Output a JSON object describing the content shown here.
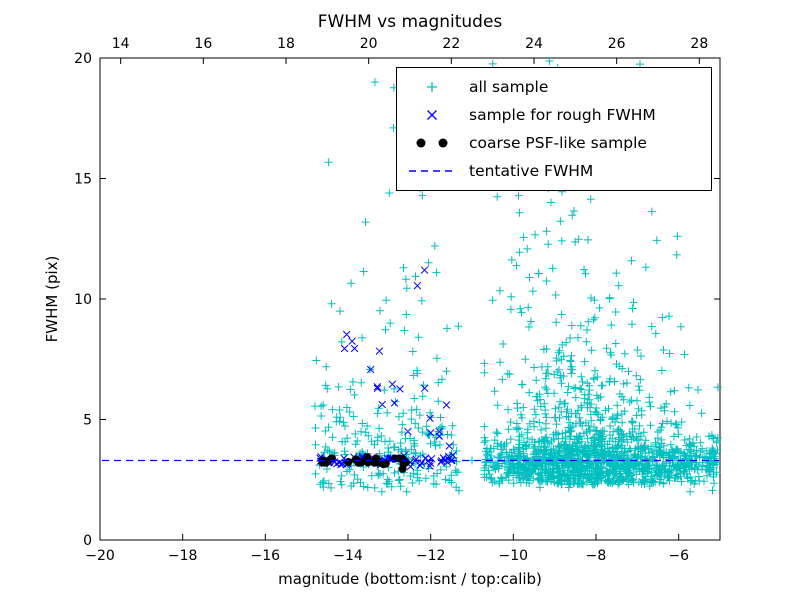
{
  "chart_data": {
    "type": "scatter",
    "title": "FWHM vs magnitudes",
    "xlabel": "magnitude (bottom:isnt / top:calib)",
    "ylabel": "FWHM (pix)",
    "grid": false,
    "seed": 42,
    "axes": {
      "x_bottom": {
        "range": [
          -20,
          -5
        ],
        "ticks": [
          -20,
          -18,
          -16,
          -14,
          -12,
          -10,
          -8,
          -6
        ]
      },
      "x_top": {
        "range": [
          13.5,
          28.5
        ],
        "ticks": [
          14,
          16,
          18,
          20,
          22,
          24,
          26,
          28
        ]
      },
      "y": {
        "range": [
          0,
          20
        ],
        "ticks": [
          0,
          5,
          10,
          15,
          20
        ]
      }
    },
    "legend": {
      "position": "upper right",
      "items": [
        {
          "label": "all sample",
          "marker": "plus",
          "color": "#00bfbf"
        },
        {
          "label": "sample for rough FWHM",
          "marker": "x",
          "color": "#0000ff"
        },
        {
          "label": "coarse PSF-like sample",
          "marker": "circle",
          "color": "#000000"
        },
        {
          "label": "tentative FWHM",
          "marker": "dashed-line",
          "color": "#0000ff"
        }
      ]
    },
    "series": [
      {
        "name": "all sample",
        "marker": "plus",
        "color": "#00bfbf",
        "size": 4,
        "clusters": [
          {
            "count": 140,
            "x": {
              "dist": "uniform",
              "min": -14.8,
              "max": -11.3
            },
            "y": {
              "dist": "exp",
              "base": 2.1,
              "scale": 4.0,
              "max": 19.6
            }
          },
          {
            "count": 115,
            "x": {
              "dist": "uniform",
              "min": -14.8,
              "max": -11.3
            },
            "y": {
              "dist": "normal",
              "mean": 3.6,
              "sd": 1.0,
              "min": 2.0,
              "max": 7.0
            }
          },
          {
            "count": 950,
            "x": {
              "dist": "normal",
              "mean": -8.2,
              "sd": 1.15,
              "min": -10.7,
              "max": -5.05
            },
            "y": {
              "dist": "exp",
              "base": 2.3,
              "scale": 2.0,
              "max": 20.0
            }
          },
          {
            "count": 560,
            "x": {
              "dist": "uniform",
              "min": -10.7,
              "max": -5.05
            },
            "y": {
              "dist": "normal",
              "mean": 3.3,
              "sd": 0.4,
              "min": 2.1,
              "max": 5.0
            }
          },
          {
            "count": 80,
            "x": {
              "dist": "normal",
              "mean": -8.9,
              "sd": 0.9,
              "min": -10.5,
              "max": -6.8
            },
            "y": {
              "dist": "uniform",
              "min": 9.0,
              "max": 20.0
            }
          },
          {
            "count": 60,
            "x": {
              "dist": "uniform",
              "min": -10.7,
              "max": -5.05
            },
            "y": {
              "dist": "normal",
              "mean": 2.7,
              "sd": 0.3,
              "min": 2.0,
              "max": 3.4
            }
          }
        ],
        "points": [
          [
            -13.35,
            19.0
          ],
          [
            -12.9,
            17.1
          ],
          [
            -13.0,
            14.4
          ],
          [
            -12.2,
            14.3
          ],
          [
            -11.9,
            12.2
          ],
          [
            -14.4,
            9.8
          ],
          [
            -14.6,
            5.6
          ],
          [
            -11.0,
            3.3
          ]
        ]
      },
      {
        "name": "sample for rough FWHM",
        "marker": "x",
        "color": "#0000ff",
        "size": 3.4,
        "clusters": [
          {
            "count": 60,
            "x": {
              "dist": "uniform",
              "min": -14.68,
              "max": -11.45
            },
            "y": {
              "dist": "normal",
              "mean": 3.3,
              "sd": 0.1,
              "min": 3.05,
              "max": 3.6
            }
          },
          {
            "count": 15,
            "x": {
              "dist": "uniform",
              "min": -14.15,
              "max": -11.7
            },
            "y": {
              "dist": "diag",
              "slope": -1.45,
              "intercept": -12.4,
              "sd": 0.6,
              "min": 3.8,
              "max": 9.0
            }
          }
        ],
        "points": [
          [
            -12.15,
            11.2
          ],
          [
            -12.32,
            10.55
          ],
          [
            -13.9,
            8.25
          ],
          [
            -11.55,
            3.9
          ],
          [
            -12.0,
            4.45
          ],
          [
            -11.5,
            3.3
          ],
          [
            -11.62,
            5.6
          ],
          [
            -12.55,
            4.5
          ]
        ]
      },
      {
        "name": "coarse PSF-like sample",
        "marker": "circle",
        "color": "#000000",
        "size": 4,
        "clusters": [
          {
            "count": 26,
            "x": {
              "dist": "uniform",
              "min": -14.66,
              "max": -12.55
            },
            "y": {
              "dist": "normal",
              "mean": 3.27,
              "sd": 0.07,
              "min": 3.1,
              "max": 3.45
            }
          }
        ],
        "points": [
          [
            -12.68,
            2.95
          ],
          [
            -12.6,
            3.22
          ],
          [
            -14.6,
            3.3
          ],
          [
            -13.5,
            3.25
          ]
        ]
      }
    ],
    "tentative_fwhm_line": {
      "name": "tentative FWHM",
      "y": 3.3,
      "color": "#0000ff",
      "dash": "7 5"
    }
  }
}
